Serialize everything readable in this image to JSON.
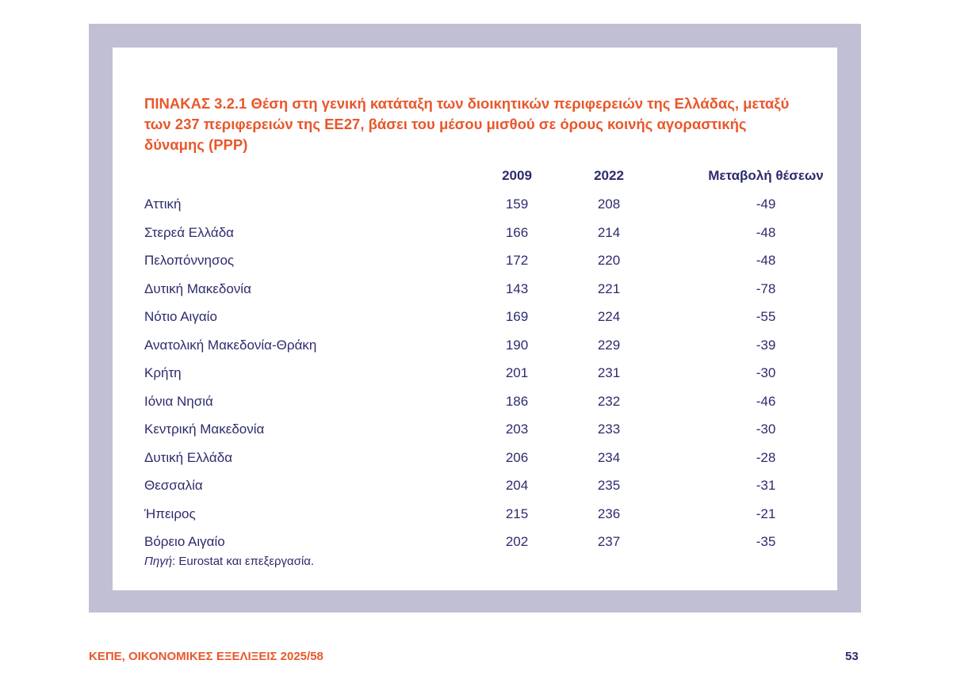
{
  "title": "ΠΙΝΑΚΑΣ 3.2.1  Θέση στη γενική κατάταξη των διοικητικών περιφερειών της Ελλάδας, μεταξύ των 237 περιφερειών της ΕΕ27, βάσει του μέσου μισθού σε όρους κοινής αγοραστικής δύναμης (PPP)",
  "table": {
    "headers": [
      "",
      "2009",
      "2022",
      "Μεταβολή θέσεων"
    ],
    "rows": [
      [
        "Αττική",
        "159",
        "208",
        "-49"
      ],
      [
        "Στερεά Ελλάδα",
        "166",
        "214",
        "-48"
      ],
      [
        "Πελοπόννησος",
        "172",
        "220",
        "-48"
      ],
      [
        "Δυτική Μακεδονία",
        "143",
        "221",
        "-78"
      ],
      [
        "Νότιο Αιγαίο",
        "169",
        "224",
        "-55"
      ],
      [
        "Ανατολική Μακεδονία-Θράκη",
        "190",
        "229",
        "-39"
      ],
      [
        "Κρήτη",
        "201",
        "231",
        "-30"
      ],
      [
        "Ιόνια Νησιά",
        "186",
        "232",
        "-46"
      ],
      [
        "Κεντρική Μακεδονία",
        "203",
        "233",
        "-30"
      ],
      [
        "Δυτική Ελλάδα",
        "206",
        "234",
        "-28"
      ],
      [
        "Θεσσαλία",
        "204",
        "235",
        "-31"
      ],
      [
        "Ήπειρος",
        "215",
        "236",
        "-21"
      ],
      [
        "Βόρειο Αιγαίο",
        "202",
        "237",
        "-35"
      ]
    ]
  },
  "source": {
    "label": "Πηγή",
    "text": ": Eurostat και επεξεργασία."
  },
  "footer": {
    "left": "ΚΕΠΕ, ΟΙΚΟΝΟΜΙΚΕΣ ΕΞΕΛΙΞΕΙΣ 2025/58",
    "page": "53"
  }
}
